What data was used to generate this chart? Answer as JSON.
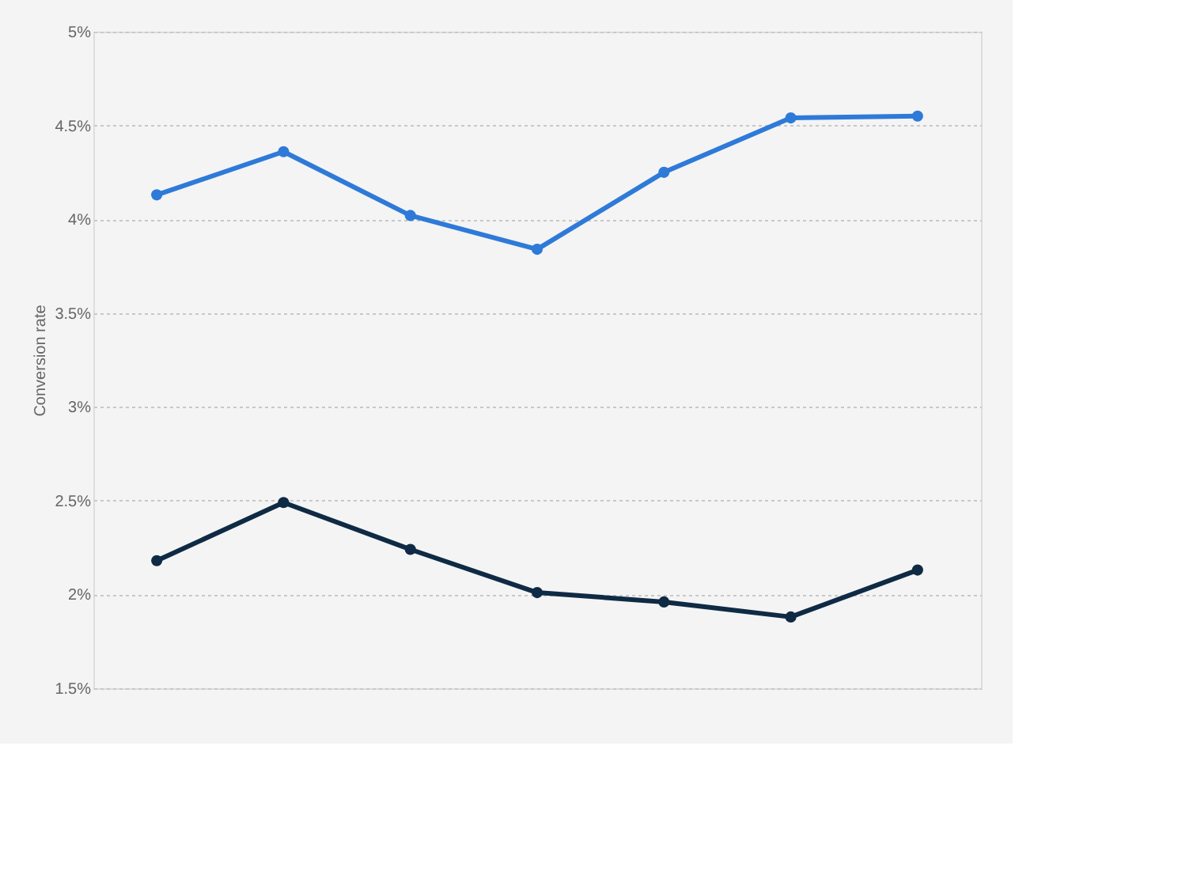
{
  "chart_data": {
    "type": "line",
    "ylabel": "Conversion rate",
    "categories": [
      null,
      null,
      null,
      null,
      null,
      null,
      null
    ],
    "series": [
      {
        "color": "#2e7ad8",
        "values": [
          4.13,
          4.36,
          4.02,
          3.84,
          4.25,
          4.54,
          4.55
        ]
      },
      {
        "color": "#0f2a44",
        "values": [
          2.18,
          2.49,
          2.24,
          2.01,
          1.96,
          1.88,
          2.13
        ]
      }
    ],
    "ylim": [
      1.5,
      5
    ],
    "yticks": [
      {
        "value": 1.5,
        "label": "1.5%"
      },
      {
        "value": 2,
        "label": "2%"
      },
      {
        "value": 2.5,
        "label": "2.5%"
      },
      {
        "value": 3,
        "label": "3%"
      },
      {
        "value": 3.5,
        "label": "3.5%"
      },
      {
        "value": 4,
        "label": "4%"
      },
      {
        "value": 4.5,
        "label": "4.5%"
      },
      {
        "value": 5,
        "label": "5%"
      }
    ],
    "grid": "y",
    "marker": "circle",
    "line_style": "solid",
    "tick_labels": "y"
  }
}
